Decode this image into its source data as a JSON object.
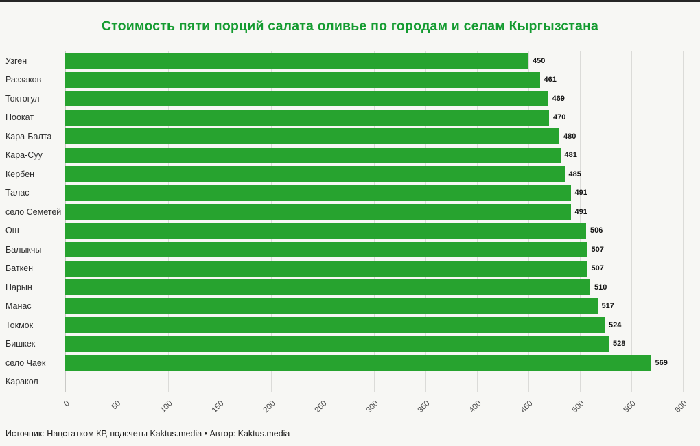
{
  "page": {
    "colors": {
      "background": "#f7f7f4",
      "title_green": "#149b30",
      "bar_green": "#27a32f",
      "grid_line": "#dbdbd8",
      "value_label": "#141414",
      "top_rule": "#262626"
    }
  },
  "footer": "Источник: Нацстатком КР, подсчеты Kaktus.media • Автор: Kaktus.media",
  "chart_data": {
    "type": "bar",
    "orientation": "horizontal",
    "title": "Стоимость пяти порций салата оливье по городам и селам Кыргызстана",
    "categories": [
      "Узген",
      "Раззаков",
      "Токтогул",
      "Ноокат",
      "Кара-Балта",
      "Кара-Суу",
      "Кербен",
      "Талас",
      "село Семетей",
      "Ош",
      "Балыкчы",
      "Баткен",
      "Нарын",
      "Манас",
      "Токмок",
      "Бишкек",
      "село Чаек",
      "Каракол"
    ],
    "values": [
      450,
      461,
      469,
      470,
      480,
      481,
      485,
      491,
      491,
      506,
      507,
      507,
      510,
      517,
      524,
      528,
      569,
      null
    ],
    "value_labels_shown": true,
    "xlabel": "",
    "ylabel": "",
    "xlim": [
      0,
      600
    ],
    "xticks": [
      0,
      50,
      100,
      150,
      200,
      250,
      300,
      350,
      400,
      450,
      500,
      550,
      600
    ],
    "xtick_rotation_deg": 45,
    "grid": "vertical",
    "legend": "none",
    "bar_color": "#27a32f"
  }
}
